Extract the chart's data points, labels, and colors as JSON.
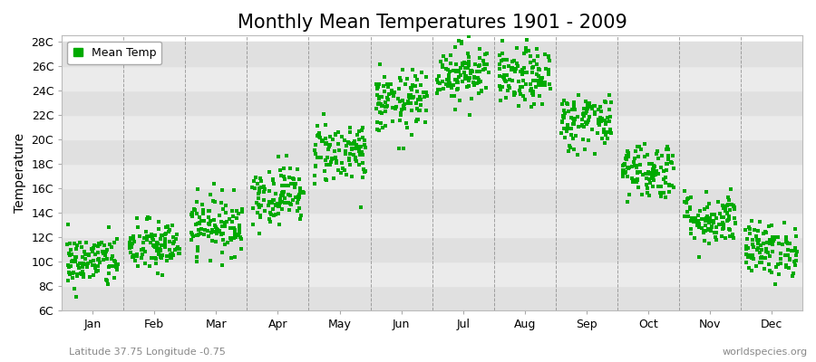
{
  "title": "Monthly Mean Temperatures 1901 - 2009",
  "ylabel": "Temperature",
  "xlabel_bottom_left": "Latitude 37.75 Longitude -0.75",
  "xlabel_bottom_right": "worldspecies.org",
  "legend_label": "Mean Temp",
  "dot_color": "#00AA00",
  "background_color": "#FFFFFF",
  "plot_bg_even": "#E0E0E0",
  "plot_bg_odd": "#EBEBEB",
  "grid_color": "#808080",
  "yticks": [
    6,
    8,
    10,
    12,
    14,
    16,
    18,
    20,
    22,
    24,
    26,
    28
  ],
  "ylim": [
    6,
    28.5
  ],
  "months": [
    "Jan",
    "Feb",
    "Mar",
    "Apr",
    "May",
    "Jun",
    "Jul",
    "Aug",
    "Sep",
    "Oct",
    "Nov",
    "Dec"
  ],
  "month_means": [
    10.0,
    11.2,
    13.0,
    15.5,
    19.0,
    23.0,
    25.5,
    25.0,
    21.5,
    17.5,
    13.5,
    11.0
  ],
  "month_stds": [
    1.1,
    1.1,
    1.2,
    1.2,
    1.3,
    1.3,
    1.2,
    1.2,
    1.2,
    1.2,
    1.1,
    1.1
  ],
  "n_years": 109,
  "seed": 42,
  "title_fontsize": 15,
  "axis_fontsize": 10,
  "tick_fontsize": 9,
  "legend_fontsize": 9,
  "footer_fontsize": 8
}
